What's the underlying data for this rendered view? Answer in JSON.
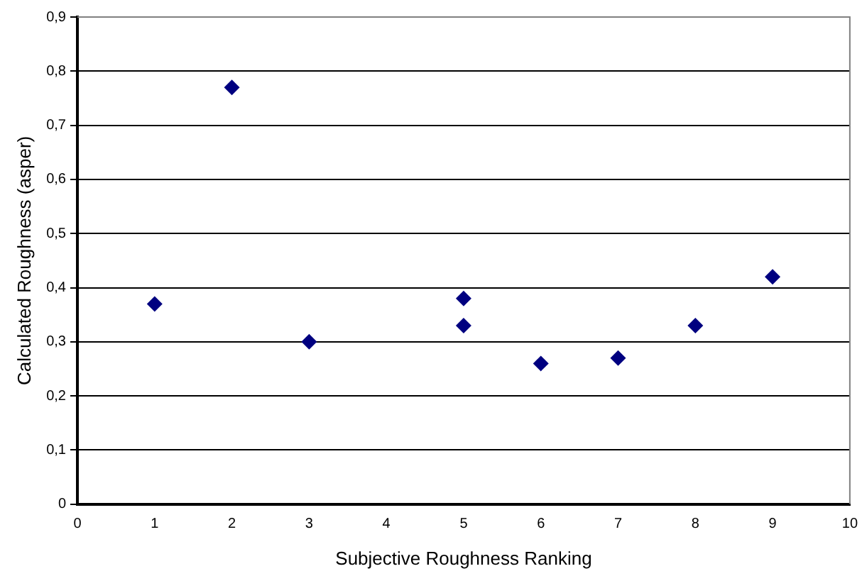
{
  "chart_data": {
    "type": "scatter",
    "xlabel": "Subjective Roughness Ranking",
    "ylabel": "Calculated Roughness (asper)",
    "x": [
      1,
      2,
      3,
      5,
      5,
      6,
      7,
      8,
      9
    ],
    "values": [
      0.37,
      0.77,
      0.3,
      0.38,
      0.33,
      0.26,
      0.27,
      0.33,
      0.42
    ],
    "color": "#000080",
    "marker": "diamond",
    "grid": "y",
    "legend": false,
    "xlim": [
      0,
      10
    ],
    "xticks": [
      0,
      1,
      2,
      3,
      4,
      5,
      6,
      7,
      8,
      9,
      10
    ],
    "ylim": [
      0,
      0.9
    ],
    "yticks": [
      0,
      {
        "value": 0.1,
        "label": "0,1"
      },
      {
        "value": 0.2,
        "label": "0,2"
      },
      {
        "value": 0.3,
        "label": "0,3"
      },
      {
        "value": 0.4,
        "label": "0,4"
      },
      {
        "value": 0.5,
        "label": "0,5"
      },
      {
        "value": 0.6,
        "label": "0,6"
      },
      {
        "value": 0.7,
        "label": "0,7"
      },
      {
        "value": 0.8,
        "label": "0,8"
      },
      {
        "value": 0.9,
        "label": "0,9"
      }
    ]
  }
}
